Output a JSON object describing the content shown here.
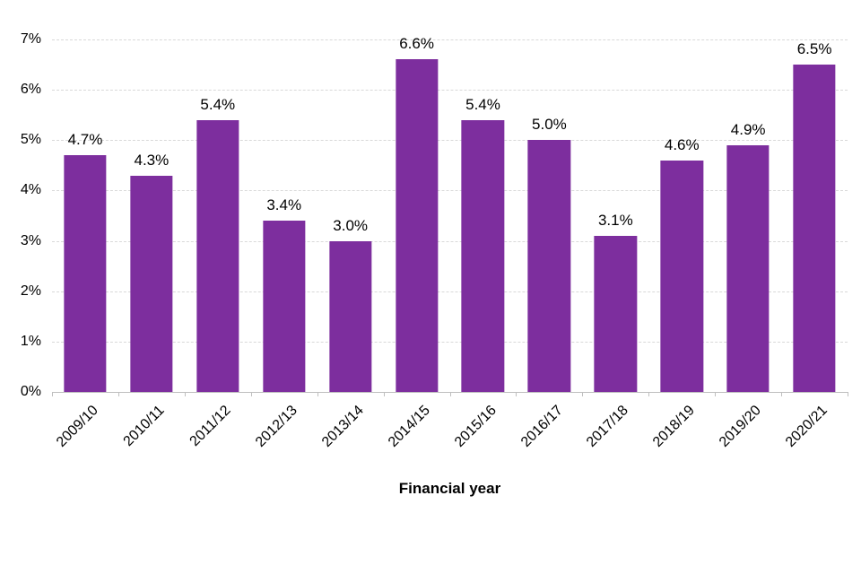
{
  "chart_data": {
    "type": "bar",
    "title": "",
    "xlabel": "Financial year",
    "ylabel": "",
    "categories": [
      "2009/10",
      "2010/11",
      "2011/12",
      "2012/13",
      "2013/14",
      "2014/15",
      "2015/16",
      "2016/17",
      "2017/18",
      "2018/19",
      "2019/20",
      "2020/21"
    ],
    "values": [
      4.7,
      4.3,
      5.4,
      3.4,
      3.0,
      6.6,
      5.4,
      5.0,
      3.1,
      4.6,
      4.9,
      6.5
    ],
    "value_labels": [
      "4.7%",
      "4.3%",
      "5.4%",
      "3.4%",
      "3.0%",
      "6.6%",
      "5.4%",
      "5.0%",
      "3.1%",
      "4.6%",
      "4.9%",
      "6.5%"
    ],
    "ylim": [
      0,
      7
    ],
    "ytick_labels": [
      "0%",
      "1%",
      "2%",
      "3%",
      "4%",
      "5%",
      "6%",
      "7%"
    ],
    "grid": "horizontal-dashed",
    "legend": "none",
    "bar_color": "#7d2e9e",
    "gridline_color": "#d9d9d9",
    "axis_line_color": "#bfbfbf",
    "text_color": "#000000"
  }
}
